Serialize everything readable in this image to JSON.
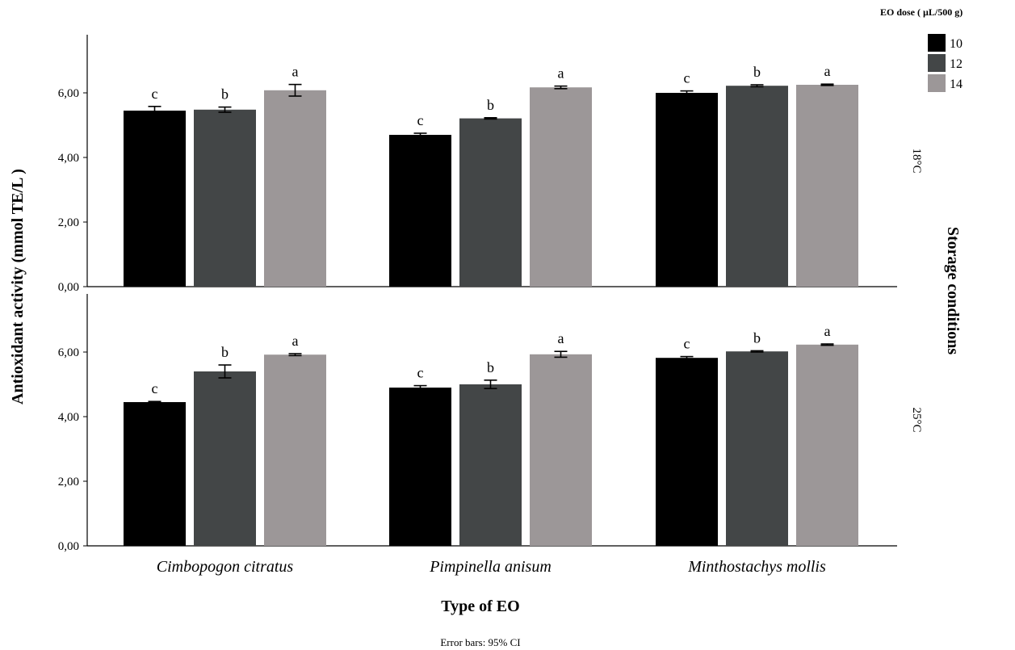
{
  "chart_data": {
    "type": "bar",
    "xlabel": "Type of EO",
    "ylabel": "Antioxidant activity (mmol TE/L )",
    "facet_title": "Storage conditions",
    "footnote": "Error bars: 95% CI",
    "legend": {
      "title": "EO dose ( µL/500 g)",
      "placement": "top-right"
    },
    "categories": [
      "Cimbopogon citratus",
      "Pimpinella anisum",
      "Minthostachys mollis"
    ],
    "ylim": [
      0,
      7.8
    ],
    "yticks": [
      "0,00",
      "2,00",
      "4,00",
      "6,00"
    ],
    "series_names": [
      "10",
      "12",
      "14"
    ],
    "colors": [
      "#000000",
      "#434647",
      "#9c9798"
    ],
    "panels": [
      {
        "label": "18°C",
        "series": [
          {
            "name": "10",
            "values": [
              5.45,
              4.7,
              6.0
            ],
            "err": [
              0.13,
              0.05,
              0.06
            ],
            "sig": [
              "c",
              "c",
              "c"
            ]
          },
          {
            "name": "12",
            "values": [
              5.48,
              5.21,
              6.22
            ],
            "err": [
              0.08,
              0.02,
              0.03
            ],
            "sig": [
              "b",
              "b",
              "b"
            ]
          },
          {
            "name": "14",
            "values": [
              6.08,
              6.17,
              6.25
            ],
            "err": [
              0.18,
              0.04,
              0.02
            ],
            "sig": [
              "a",
              "a",
              "a"
            ]
          }
        ]
      },
      {
        "label": "25°C",
        "series": [
          {
            "name": "10",
            "values": [
              4.45,
              4.9,
              5.82
            ],
            "err": [
              0.02,
              0.06,
              0.04
            ],
            "sig": [
              "c",
              "c",
              "c"
            ]
          },
          {
            "name": "12",
            "values": [
              5.4,
              5.0,
              6.02
            ],
            "err": [
              0.2,
              0.13,
              0.02
            ],
            "sig": [
              "b",
              "b",
              "b"
            ]
          },
          {
            "name": "14",
            "values": [
              5.92,
              5.93,
              6.23
            ],
            "err": [
              0.03,
              0.09,
              0.02
            ],
            "sig": [
              "a",
              "a",
              "a"
            ]
          }
        ]
      }
    ]
  }
}
